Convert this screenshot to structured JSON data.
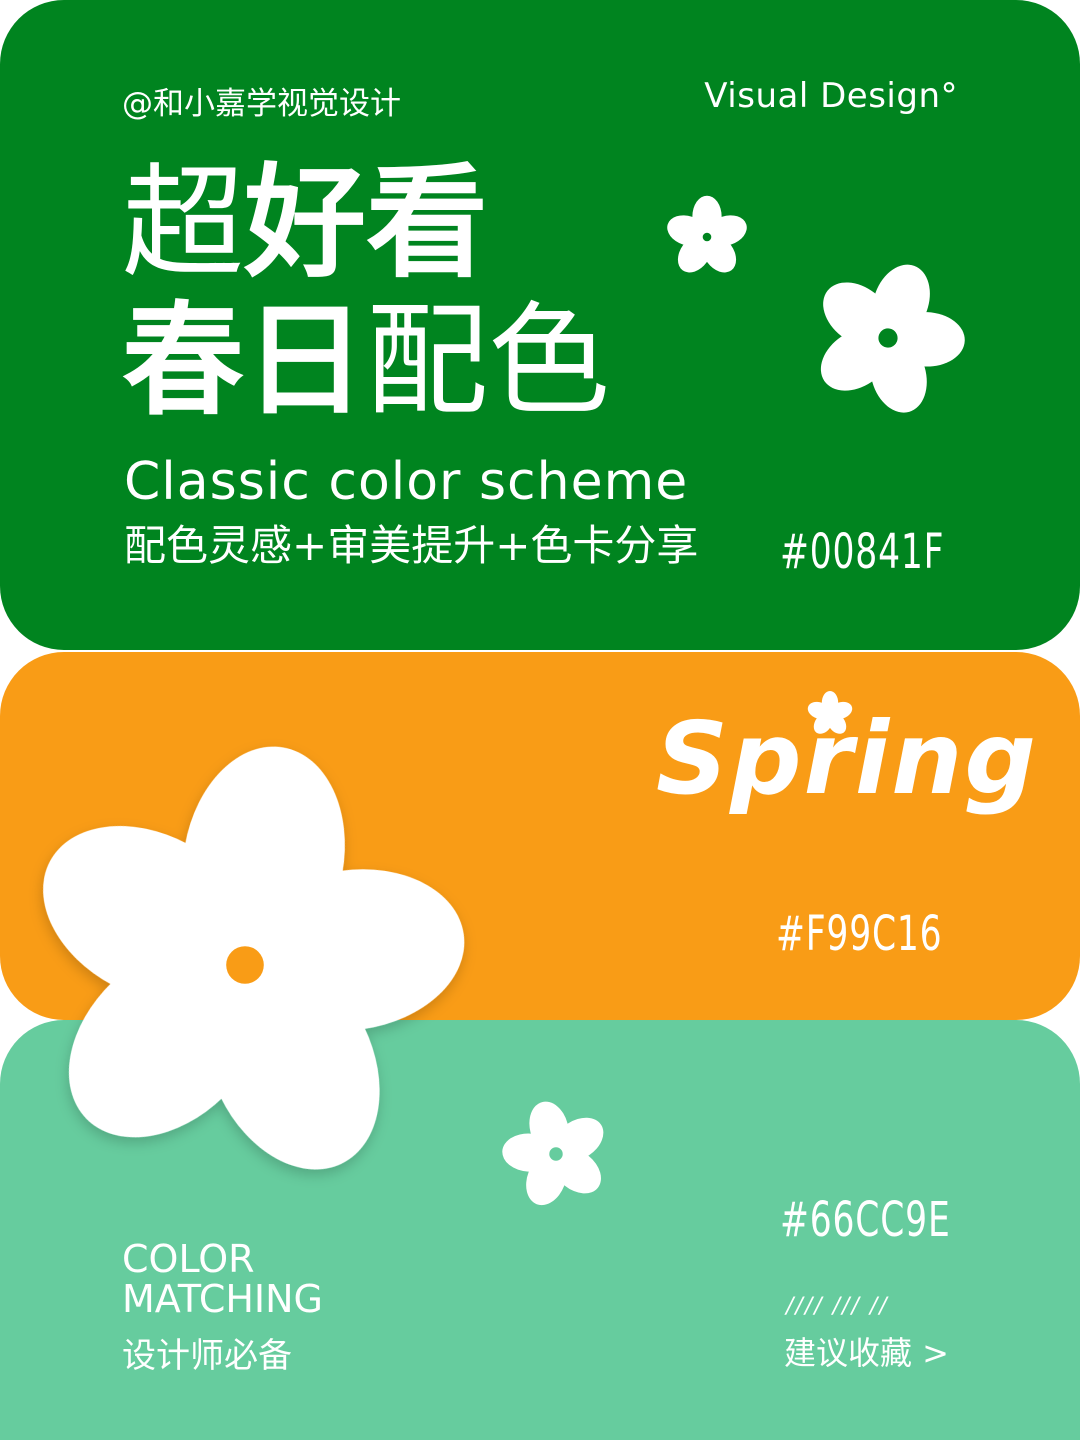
{
  "header": {
    "handle": "@和小嘉学视觉设计",
    "brand": "Visual Design°"
  },
  "title": {
    "line1_light": "超",
    "line1_bold": "好看",
    "line2_bold": "春日",
    "line2_light": "配色",
    "subtitle": "Classic color scheme",
    "tagline": "配色灵感+审美提升+色卡分享"
  },
  "swatches": [
    {
      "hex_label": "#00841F",
      "color": "#00841F"
    },
    {
      "hex_label": "#F99C16",
      "color": "#F99C16"
    },
    {
      "hex_label": "#66CC9E",
      "color": "#66CC9E"
    }
  ],
  "spring_word": "Spring",
  "footer": {
    "color_line1": "COLOR",
    "color_line2": "MATCHING",
    "subtitle": "设计师必备",
    "slashes": "//// /// //",
    "save_cta": "建议收藏 >"
  },
  "icons": [
    "flower-icon"
  ]
}
